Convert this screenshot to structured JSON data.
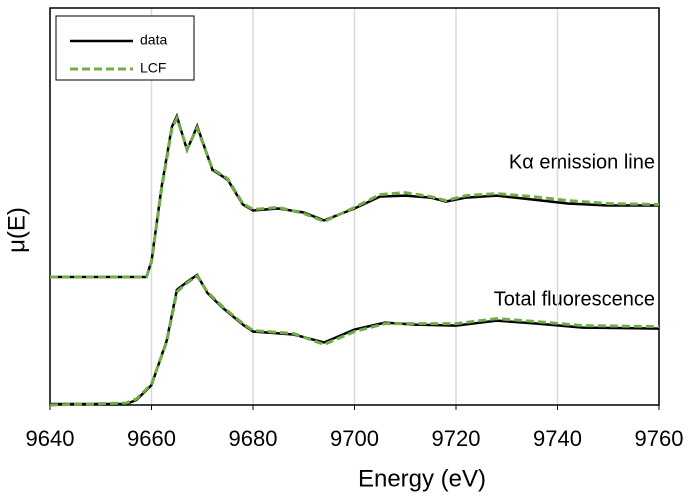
{
  "chart_data": {
    "type": "line",
    "xlabel": "Energy (eV)",
    "ylabel": "μ(E)",
    "xlim": [
      9640,
      9760
    ],
    "xticks": [
      9640,
      9660,
      9680,
      9700,
      9720,
      9740,
      9760
    ],
    "ylim": [
      0,
      4
    ],
    "grid": true,
    "legend": "upper left",
    "annotations": [
      "Kα emission line",
      "Total fluorescence"
    ],
    "series": [
      {
        "name": "data",
        "color": "#000000",
        "dash": false,
        "x": [
          9640,
          9659,
          9660,
          9662,
          9664,
          9665,
          9667,
          9669,
          9672,
          9675,
          9678,
          9680,
          9685,
          9690,
          9694,
          9700,
          9705,
          9710,
          9715,
          9718,
          9722,
          9728,
          9735,
          9742,
          9750,
          9760
        ],
        "values": [
          1.29,
          1.29,
          1.45,
          2.2,
          2.8,
          2.91,
          2.57,
          2.81,
          2.37,
          2.27,
          2.02,
          1.96,
          1.98,
          1.94,
          1.86,
          1.98,
          2.1,
          2.11,
          2.09,
          2.05,
          2.09,
          2.11,
          2.07,
          2.03,
          2.01,
          2.01
        ]
      },
      {
        "name": "LCF",
        "color": "#70ad47",
        "dash": true,
        "x": [
          9640,
          9659,
          9660,
          9662,
          9664,
          9665,
          9667,
          9669,
          9672,
          9675,
          9678,
          9680,
          9685,
          9690,
          9694,
          9700,
          9705,
          9710,
          9715,
          9718,
          9722,
          9728,
          9735,
          9742,
          9750,
          9760
        ],
        "values": [
          1.29,
          1.29,
          1.44,
          2.18,
          2.78,
          2.89,
          2.58,
          2.79,
          2.38,
          2.28,
          2.03,
          1.97,
          1.99,
          1.93,
          1.85,
          1.99,
          2.12,
          2.14,
          2.1,
          2.06,
          2.11,
          2.13,
          2.1,
          2.06,
          2.03,
          2.02
        ]
      },
      {
        "name": "data",
        "color": "#000000",
        "dash": false,
        "x": [
          9640,
          9655,
          9657,
          9660,
          9663,
          9665,
          9667,
          9669,
          9671,
          9674,
          9678,
          9680,
          9688,
          9694,
          9700,
          9706,
          9712,
          9720,
          9728,
          9736,
          9745,
          9760
        ],
        "values": [
          0.01,
          0.01,
          0.05,
          0.2,
          0.65,
          1.16,
          1.24,
          1.31,
          1.13,
          0.98,
          0.81,
          0.74,
          0.71,
          0.63,
          0.76,
          0.83,
          0.81,
          0.8,
          0.85,
          0.82,
          0.78,
          0.77
        ]
      },
      {
        "name": "LCF",
        "color": "#70ad47",
        "dash": true,
        "x": [
          9640,
          9655,
          9657,
          9660,
          9663,
          9665,
          9667,
          9669,
          9671,
          9674,
          9678,
          9680,
          9688,
          9694,
          9700,
          9706,
          9712,
          9720,
          9728,
          9736,
          9745,
          9760
        ],
        "values": [
          0.0,
          0.02,
          0.06,
          0.21,
          0.64,
          1.14,
          1.23,
          1.3,
          1.14,
          0.99,
          0.82,
          0.75,
          0.72,
          0.61,
          0.74,
          0.82,
          0.82,
          0.82,
          0.87,
          0.84,
          0.8,
          0.79
        ]
      }
    ]
  }
}
